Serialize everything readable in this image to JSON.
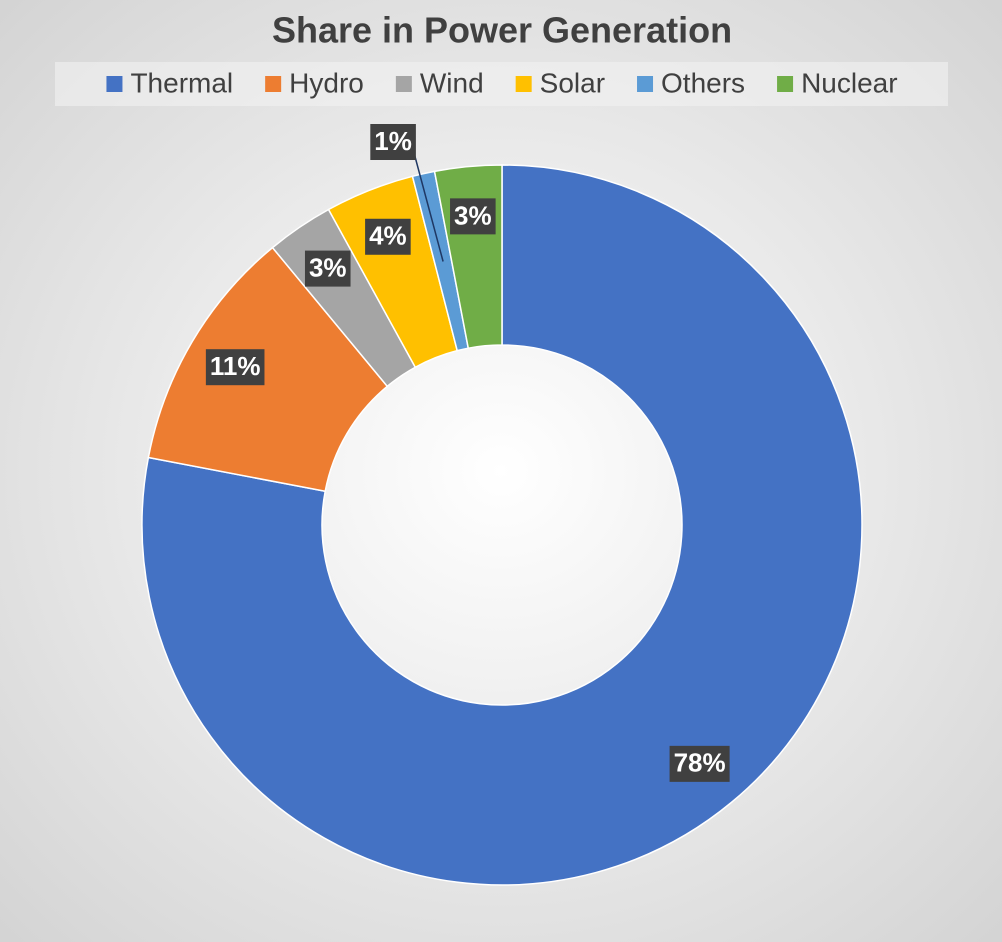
{
  "chart_data": {
    "type": "donut",
    "title": "Share in Power Generation",
    "categories": [
      "Thermal",
      "Hydro",
      "Wind",
      "Solar",
      "Others",
      "Nuclear"
    ],
    "values": [
      78,
      11,
      3,
      4,
      1,
      3
    ],
    "value_labels": [
      "78%",
      "11%",
      "3%",
      "4%",
      "1%",
      "3%"
    ],
    "colors": [
      "#4472c4",
      "#ed7d31",
      "#a5a5a5",
      "#ffc000",
      "#5b9bd5",
      "#70ad47"
    ],
    "legend": "top"
  }
}
